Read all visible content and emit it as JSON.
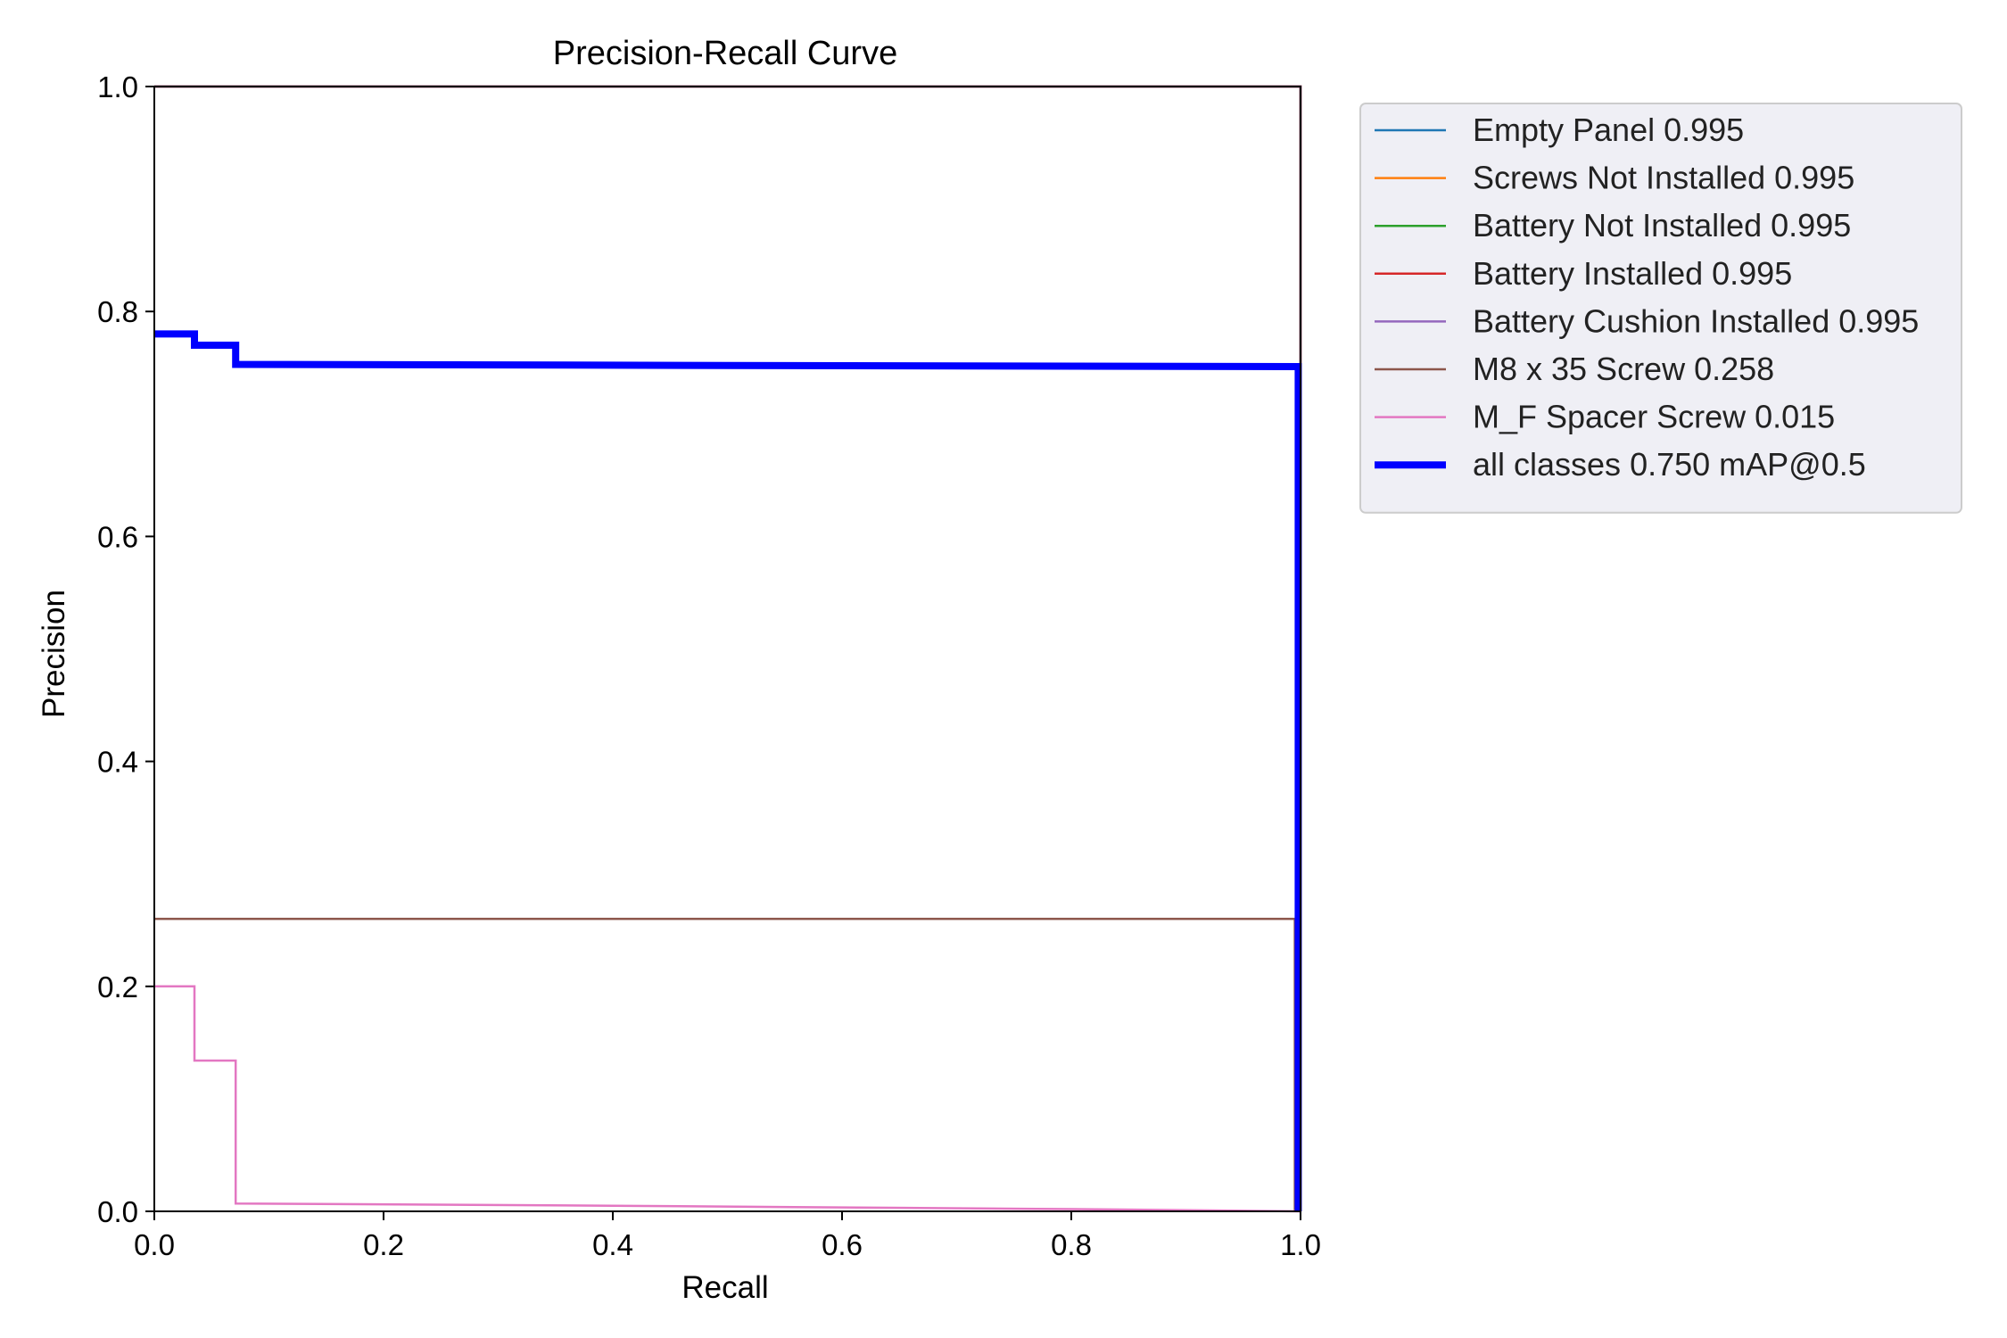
{
  "chart_data": {
    "type": "line",
    "title": "Precision-Recall Curve",
    "xlabel": "Recall",
    "ylabel": "Precision",
    "xlim": [
      0.0,
      1.0
    ],
    "ylim": [
      0.0,
      1.0
    ],
    "x_ticks": [
      "0.0",
      "0.2",
      "0.4",
      "0.6",
      "0.8",
      "1.0"
    ],
    "y_ticks": [
      "0.0",
      "0.2",
      "0.4",
      "0.6",
      "0.8",
      "1.0"
    ],
    "grid": false,
    "legend_position": "outside-right-top",
    "series": [
      {
        "name": "Empty Panel 0.995",
        "color": "#1f77b4",
        "width": "thin",
        "points": [
          [
            0.0,
            1.0
          ],
          [
            1.0,
            1.0
          ],
          [
            1.0,
            0.0
          ]
        ]
      },
      {
        "name": "Screws Not Installed 0.995",
        "color": "#ff7f0e",
        "width": "thin",
        "points": [
          [
            0.0,
            1.0
          ],
          [
            1.0,
            1.0
          ],
          [
            1.0,
            0.0
          ]
        ]
      },
      {
        "name": "Battery Not Installed 0.995",
        "color": "#2ca02c",
        "width": "thin",
        "points": [
          [
            0.0,
            1.0
          ],
          [
            1.0,
            1.0
          ],
          [
            1.0,
            0.0
          ]
        ]
      },
      {
        "name": "Battery Installed 0.995",
        "color": "#d62728",
        "width": "thin",
        "points": [
          [
            0.0,
            1.0
          ],
          [
            1.0,
            1.0
          ],
          [
            1.0,
            0.0
          ]
        ]
      },
      {
        "name": "Battery Cushion Installed 0.995",
        "color": "#9467bd",
        "width": "thin",
        "points": [
          [
            0.0,
            1.0
          ],
          [
            1.0,
            1.0
          ],
          [
            1.0,
            0.0
          ]
        ]
      },
      {
        "name": "M8 x 35 Screw 0.258",
        "color": "#8c564b",
        "width": "thin",
        "points": [
          [
            0.0,
            0.26
          ],
          [
            0.995,
            0.26
          ],
          [
            0.995,
            0.0
          ]
        ]
      },
      {
        "name": "M_F Spacer Screw 0.015",
        "color": "#e377c2",
        "width": "thin",
        "points": [
          [
            0.0,
            0.2
          ],
          [
            0.035,
            0.2
          ],
          [
            0.035,
            0.134
          ],
          [
            0.071,
            0.134
          ],
          [
            0.071,
            0.007
          ],
          [
            0.4,
            0.005
          ],
          [
            0.8,
            0.002
          ],
          [
            1.0,
            0.0
          ]
        ]
      },
      {
        "name": "all classes 0.750 mAP@0.5",
        "color": "#0000ff",
        "width": "thick",
        "points": [
          [
            0.0,
            0.78
          ],
          [
            0.035,
            0.78
          ],
          [
            0.035,
            0.77
          ],
          [
            0.071,
            0.77
          ],
          [
            0.071,
            0.753
          ],
          [
            0.5,
            0.752
          ],
          [
            0.998,
            0.751
          ],
          [
            0.998,
            0.0
          ]
        ]
      }
    ]
  }
}
